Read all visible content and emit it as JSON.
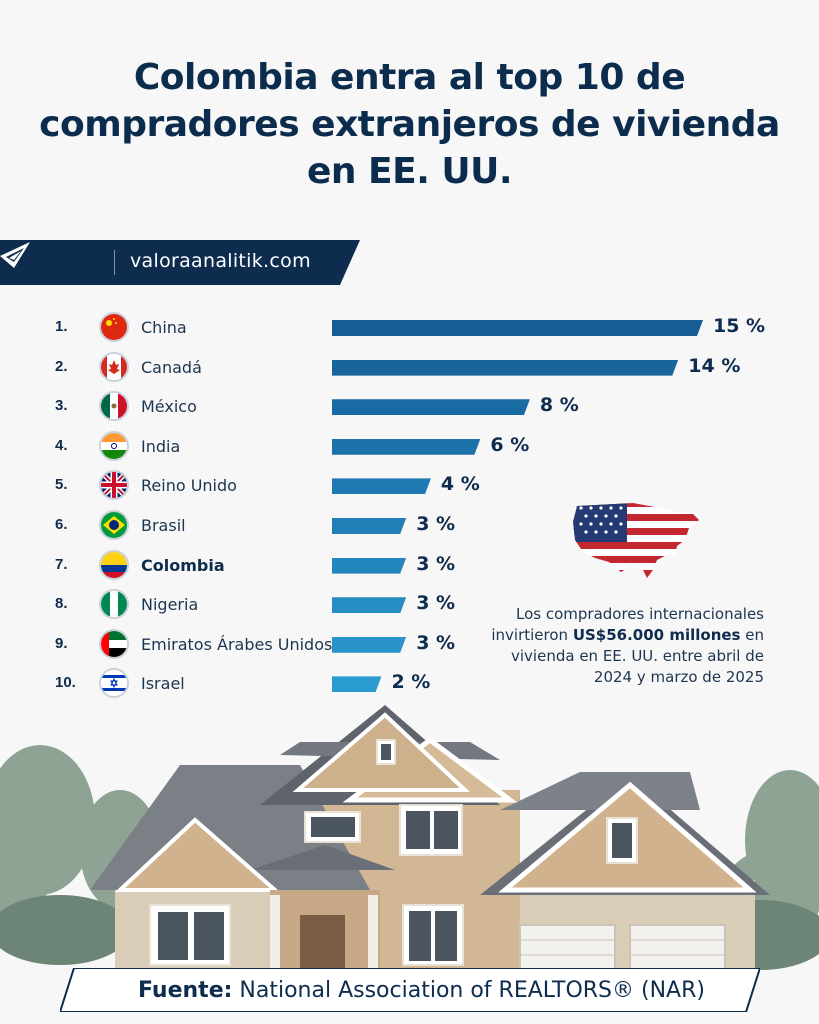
{
  "title_lines": [
    "Colombia entra al top 10 de",
    "compradores extranjeros de vivienda",
    "en EE. UU."
  ],
  "brand": {
    "site": "valoraanalitik.com",
    "logo_icon": "valora-logo-icon"
  },
  "colors": {
    "navy": "#0e2c4d",
    "bar_dark": "#165d96",
    "bar_light": "#2a9bd0"
  },
  "chart_data": {
    "type": "bar",
    "orientation": "horizontal",
    "categories": [
      "China",
      "Canadá",
      "México",
      "India",
      "Reino Unido",
      "Brasil",
      "Colombia",
      "Nigeria",
      "Emiratos Árabes Unidos",
      "Israel"
    ],
    "ranks": [
      "1.",
      "2.",
      "3.",
      "4.",
      "5.",
      "6.",
      "7.",
      "8.",
      "9.",
      "10."
    ],
    "values": [
      15,
      14,
      8,
      6,
      4,
      3,
      3,
      3,
      3,
      2
    ],
    "value_labels": [
      "15 %",
      "14 %",
      "8 %",
      "6 %",
      "4 %",
      "3 %",
      "3 %",
      "3 %",
      "3 %",
      "2 %"
    ],
    "flag_icons": [
      "china-flag-icon",
      "canada-flag-icon",
      "mexico-flag-icon",
      "india-flag-icon",
      "uk-flag-icon",
      "brazil-flag-icon",
      "colombia-flag-icon",
      "nigeria-flag-icon",
      "uae-flag-icon",
      "israel-flag-icon"
    ],
    "highlight": "Colombia",
    "unit": "%"
  },
  "note": {
    "text_before": "Los compradores internacionales invirtieron ",
    "text_bold": "US$56.000 millones",
    "text_after": " en vivienda en EE. UU. entre abril de 2024 y marzo de 2025"
  },
  "source": {
    "label": "Fuente:",
    "text": " National Association of REALTORS® (NAR)"
  }
}
